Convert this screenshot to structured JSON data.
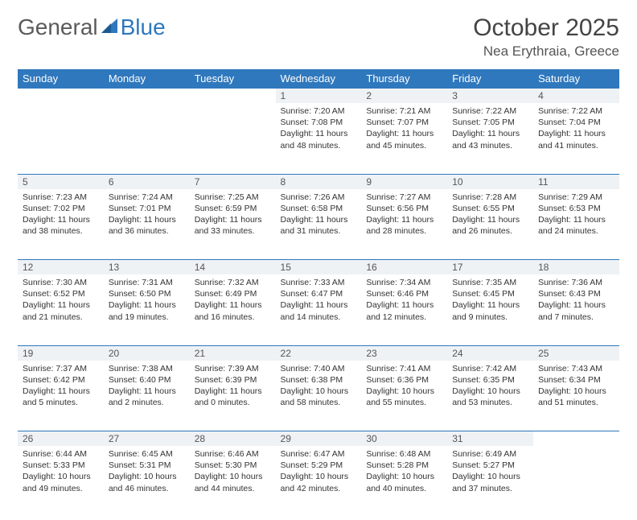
{
  "logo": {
    "text1": "General",
    "text2": "Blue"
  },
  "title": "October 2025",
  "location": "Nea Erythraia, Greece",
  "colors": {
    "header_bg": "#2f78bd",
    "header_text": "#ffffff",
    "daynum_bg": "#eef2f5",
    "border": "#2f78bd",
    "page_bg": "#ffffff",
    "text": "#333333"
  },
  "day_headers": [
    "Sunday",
    "Monday",
    "Tuesday",
    "Wednesday",
    "Thursday",
    "Friday",
    "Saturday"
  ],
  "weeks": [
    {
      "nums": [
        "",
        "",
        "",
        "1",
        "2",
        "3",
        "4"
      ],
      "cells": [
        null,
        null,
        null,
        {
          "sunrise": "7:20 AM",
          "sunset": "7:08 PM",
          "dl_h": 11,
          "dl_m": 48
        },
        {
          "sunrise": "7:21 AM",
          "sunset": "7:07 PM",
          "dl_h": 11,
          "dl_m": 45
        },
        {
          "sunrise": "7:22 AM",
          "sunset": "7:05 PM",
          "dl_h": 11,
          "dl_m": 43
        },
        {
          "sunrise": "7:22 AM",
          "sunset": "7:04 PM",
          "dl_h": 11,
          "dl_m": 41
        }
      ]
    },
    {
      "nums": [
        "5",
        "6",
        "7",
        "8",
        "9",
        "10",
        "11"
      ],
      "cells": [
        {
          "sunrise": "7:23 AM",
          "sunset": "7:02 PM",
          "dl_h": 11,
          "dl_m": 38
        },
        {
          "sunrise": "7:24 AM",
          "sunset": "7:01 PM",
          "dl_h": 11,
          "dl_m": 36
        },
        {
          "sunrise": "7:25 AM",
          "sunset": "6:59 PM",
          "dl_h": 11,
          "dl_m": 33
        },
        {
          "sunrise": "7:26 AM",
          "sunset": "6:58 PM",
          "dl_h": 11,
          "dl_m": 31
        },
        {
          "sunrise": "7:27 AM",
          "sunset": "6:56 PM",
          "dl_h": 11,
          "dl_m": 28
        },
        {
          "sunrise": "7:28 AM",
          "sunset": "6:55 PM",
          "dl_h": 11,
          "dl_m": 26
        },
        {
          "sunrise": "7:29 AM",
          "sunset": "6:53 PM",
          "dl_h": 11,
          "dl_m": 24
        }
      ]
    },
    {
      "nums": [
        "12",
        "13",
        "14",
        "15",
        "16",
        "17",
        "18"
      ],
      "cells": [
        {
          "sunrise": "7:30 AM",
          "sunset": "6:52 PM",
          "dl_h": 11,
          "dl_m": 21
        },
        {
          "sunrise": "7:31 AM",
          "sunset": "6:50 PM",
          "dl_h": 11,
          "dl_m": 19
        },
        {
          "sunrise": "7:32 AM",
          "sunset": "6:49 PM",
          "dl_h": 11,
          "dl_m": 16
        },
        {
          "sunrise": "7:33 AM",
          "sunset": "6:47 PM",
          "dl_h": 11,
          "dl_m": 14
        },
        {
          "sunrise": "7:34 AM",
          "sunset": "6:46 PM",
          "dl_h": 11,
          "dl_m": 12
        },
        {
          "sunrise": "7:35 AM",
          "sunset": "6:45 PM",
          "dl_h": 11,
          "dl_m": 9
        },
        {
          "sunrise": "7:36 AM",
          "sunset": "6:43 PM",
          "dl_h": 11,
          "dl_m": 7
        }
      ]
    },
    {
      "nums": [
        "19",
        "20",
        "21",
        "22",
        "23",
        "24",
        "25"
      ],
      "cells": [
        {
          "sunrise": "7:37 AM",
          "sunset": "6:42 PM",
          "dl_h": 11,
          "dl_m": 5
        },
        {
          "sunrise": "7:38 AM",
          "sunset": "6:40 PM",
          "dl_h": 11,
          "dl_m": 2
        },
        {
          "sunrise": "7:39 AM",
          "sunset": "6:39 PM",
          "dl_h": 11,
          "dl_m": 0
        },
        {
          "sunrise": "7:40 AM",
          "sunset": "6:38 PM",
          "dl_h": 10,
          "dl_m": 58
        },
        {
          "sunrise": "7:41 AM",
          "sunset": "6:36 PM",
          "dl_h": 10,
          "dl_m": 55
        },
        {
          "sunrise": "7:42 AM",
          "sunset": "6:35 PM",
          "dl_h": 10,
          "dl_m": 53
        },
        {
          "sunrise": "7:43 AM",
          "sunset": "6:34 PM",
          "dl_h": 10,
          "dl_m": 51
        }
      ]
    },
    {
      "nums": [
        "26",
        "27",
        "28",
        "29",
        "30",
        "31",
        ""
      ],
      "cells": [
        {
          "sunrise": "6:44 AM",
          "sunset": "5:33 PM",
          "dl_h": 10,
          "dl_m": 49
        },
        {
          "sunrise": "6:45 AM",
          "sunset": "5:31 PM",
          "dl_h": 10,
          "dl_m": 46
        },
        {
          "sunrise": "6:46 AM",
          "sunset": "5:30 PM",
          "dl_h": 10,
          "dl_m": 44
        },
        {
          "sunrise": "6:47 AM",
          "sunset": "5:29 PM",
          "dl_h": 10,
          "dl_m": 42
        },
        {
          "sunrise": "6:48 AM",
          "sunset": "5:28 PM",
          "dl_h": 10,
          "dl_m": 40
        },
        {
          "sunrise": "6:49 AM",
          "sunset": "5:27 PM",
          "dl_h": 10,
          "dl_m": 37
        },
        null
      ]
    }
  ]
}
